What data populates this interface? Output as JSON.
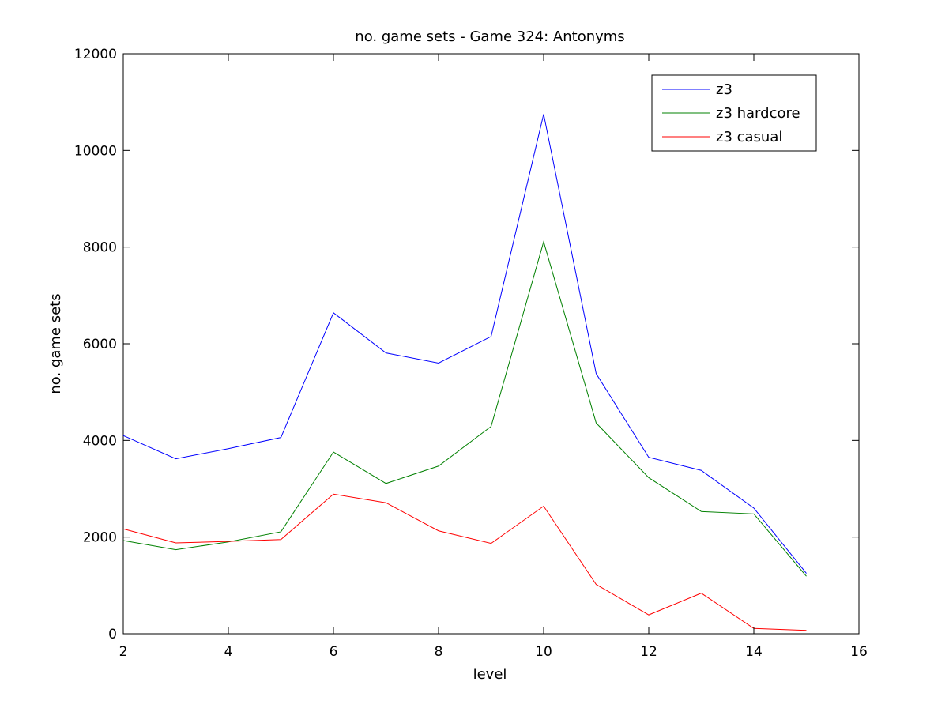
{
  "chart_data": {
    "type": "line",
    "title": "no. game sets - Game 324: Antonyms",
    "xlabel": "level",
    "ylabel": "no. game sets",
    "xlim": [
      2,
      16
    ],
    "ylim": [
      0,
      12000
    ],
    "xticks": [
      2,
      4,
      6,
      8,
      10,
      12,
      14,
      16
    ],
    "yticks": [
      0,
      2000,
      4000,
      6000,
      8000,
      10000,
      12000
    ],
    "grid": false,
    "legend_position": "top-right",
    "x": [
      2,
      3,
      4,
      5,
      6,
      7,
      8,
      9,
      10,
      11,
      12,
      13,
      14,
      15
    ],
    "series": [
      {
        "name": "z3",
        "color": "#0000ff",
        "values": [
          4100,
          3620,
          3830,
          4060,
          6640,
          5810,
          5600,
          6150,
          10750,
          5380,
          3650,
          3380,
          2600,
          1250
        ]
      },
      {
        "name": "z3 hardcore",
        "color": "#008000",
        "values": [
          1930,
          1740,
          1900,
          2110,
          3760,
          3110,
          3470,
          4290,
          8110,
          4360,
          3230,
          2530,
          2480,
          1190
        ]
      },
      {
        "name": "z3 casual",
        "color": "#ff0000",
        "values": [
          2170,
          1880,
          1910,
          1950,
          2890,
          2710,
          2130,
          1870,
          2640,
          1020,
          390,
          840,
          110,
          70
        ]
      }
    ]
  }
}
